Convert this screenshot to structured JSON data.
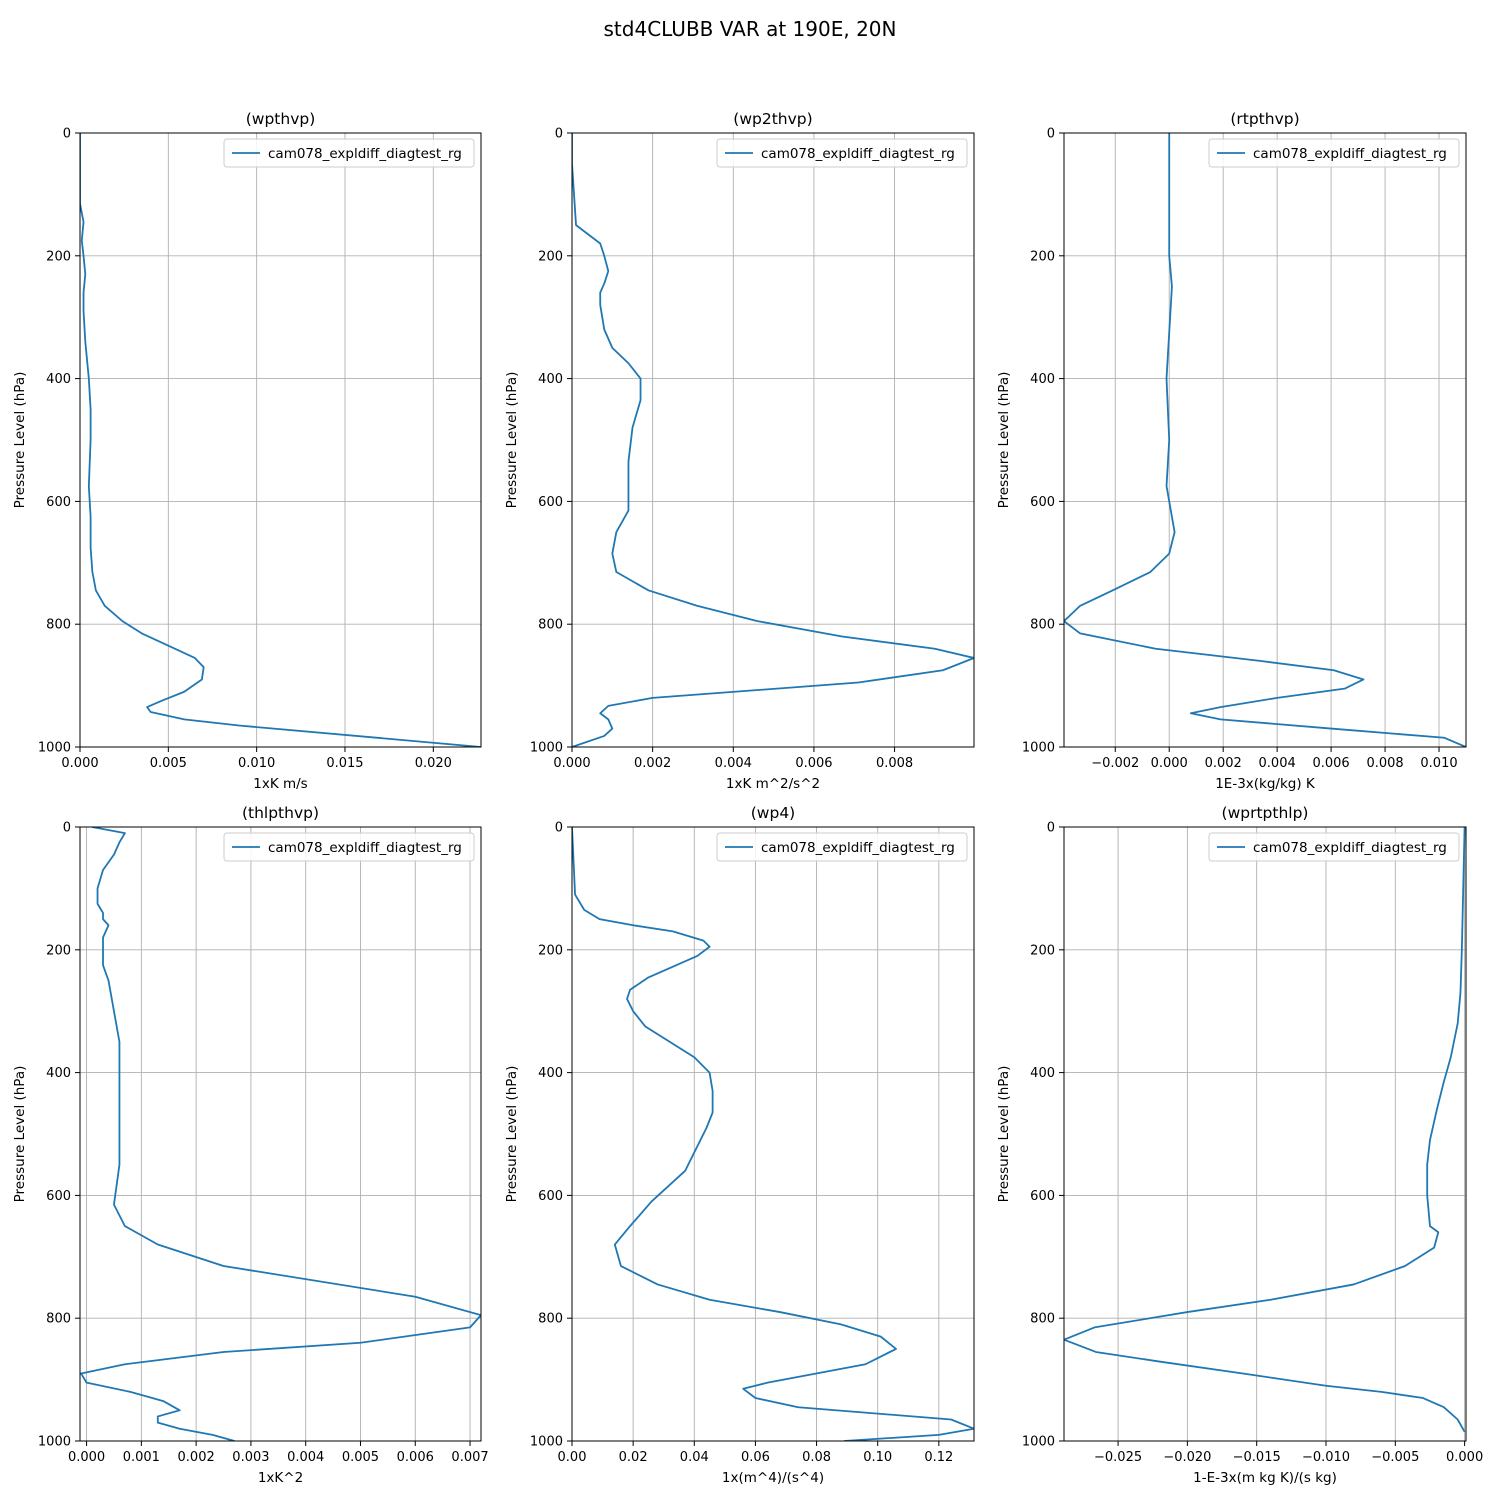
{
  "figure": {
    "title": "std4CLUBB VAR at 190E, 20N"
  },
  "chart_data": [
    {
      "type": "line",
      "title": "(wpthvp)",
      "xlabel": "1xK m/s",
      "ylabel": "Pressure Level (hPa)",
      "xlim": [
        0,
        0.0227
      ],
      "ylim": [
        1000,
        0
      ],
      "xticks": [
        0.0,
        0.005,
        0.01,
        0.015,
        0.02
      ],
      "xtick_labels": [
        "0.000",
        "0.005",
        "0.010",
        "0.015",
        "0.020"
      ],
      "yticks": [
        0,
        200,
        400,
        600,
        800,
        1000
      ],
      "ytick_labels": [
        "0",
        "200",
        "400",
        "600",
        "800",
        "1000"
      ],
      "grid": true,
      "legend_position": "top-right",
      "series": [
        {
          "name": "cam078_expldiff_diagtest_rg",
          "x": [
            0,
            0,
            0.0001,
            0.0002,
            0.0001,
            0.0002,
            0.0003,
            0.0002,
            0.0002,
            0.0003,
            0.0005,
            0.0006,
            0.0006,
            0.0005,
            0.0006,
            0.0006,
            0.0007,
            0.0009,
            0.0014,
            0.0024,
            0.0035,
            0.0065,
            0.007,
            0.0069,
            0.0059,
            0.0046,
            0.0038,
            0.004,
            0.0059,
            0.009,
            0.0227
          ],
          "y": [
            0,
            115,
            130,
            145,
            175,
            200,
            230,
            260,
            290,
            340,
            400,
            450,
            500,
            575,
            625,
            675,
            715,
            745,
            770,
            795,
            815,
            855,
            870,
            890,
            910,
            925,
            935,
            943,
            955,
            965,
            1000
          ]
        }
      ]
    },
    {
      "type": "line",
      "title": "(wp2thvp)",
      "xlabel": "1xK m^2/s^2",
      "ylabel": "Pressure Level (hPa)",
      "xlim": [
        0,
        0.00997
      ],
      "ylim": [
        1000,
        0
      ],
      "xticks": [
        0.0,
        0.002,
        0.004,
        0.006,
        0.008
      ],
      "xtick_labels": [
        "0.000",
        "0.002",
        "0.004",
        "0.006",
        "0.008"
      ],
      "yticks": [
        0,
        200,
        400,
        600,
        800,
        1000
      ],
      "ytick_labels": [
        "0",
        "200",
        "400",
        "600",
        "800",
        "1000"
      ],
      "grid": true,
      "legend_position": "top-right",
      "series": [
        {
          "name": "cam078_expldiff_diagtest_rg",
          "x": [
            0,
            0,
            0.0001,
            0.0007,
            0.0008,
            0.0009,
            0.0008,
            0.0007,
            0.0007,
            0.0008,
            0.001,
            0.0014,
            0.0017,
            0.0017,
            0.0015,
            0.0014,
            0.0014,
            0.0014,
            0.0011,
            0.001,
            0.0011,
            0.0019,
            0.0031,
            0.0046,
            0.0067,
            0.009,
            0.00997,
            0.0092,
            0.0071,
            0.002,
            0.0009,
            0.0007,
            0.0009,
            0.001,
            0.0008,
            0
          ],
          "y": [
            0,
            50,
            150,
            180,
            200,
            225,
            245,
            260,
            280,
            320,
            350,
            375,
            400,
            435,
            480,
            535,
            575,
            615,
            650,
            685,
            715,
            745,
            770,
            795,
            820,
            840,
            855,
            875,
            895,
            920,
            933,
            945,
            955,
            970,
            982,
            1000
          ]
        }
      ]
    },
    {
      "type": "line",
      "title": "(rtpthvp)",
      "xlabel": "1E-3x(kg/kg) K",
      "ylabel": "Pressure Level (hPa)",
      "xlim": [
        -0.0039,
        0.011
      ],
      "ylim": [
        1000,
        0
      ],
      "xticks": [
        -0.002,
        0.0,
        0.002,
        0.004,
        0.006,
        0.008,
        0.01
      ],
      "xtick_labels": [
        "−0.002",
        "0.000",
        "0.002",
        "0.004",
        "0.006",
        "0.008",
        "0.010"
      ],
      "yticks": [
        0,
        200,
        400,
        600,
        800,
        1000
      ],
      "ytick_labels": [
        "0",
        "200",
        "400",
        "600",
        "800",
        "1000"
      ],
      "grid": true,
      "legend_position": "top-right",
      "series": [
        {
          "name": "cam078_expldiff_diagtest_rg",
          "x": [
            0.0,
            0.0,
            0.0001,
            -0.0001,
            0.0,
            -0.0001,
            0.0002,
            0.0,
            -0.0007,
            -0.0021,
            -0.0033,
            -0.0039,
            -0.0033,
            -0.0005,
            0.0034,
            0.0061,
            0.0072,
            0.0065,
            0.004,
            0.0019,
            0.0008,
            0.0019,
            0.006,
            0.0102,
            0.011
          ],
          "y": [
            0,
            200,
            250,
            400,
            500,
            575,
            650,
            685,
            715,
            745,
            770,
            795,
            815,
            840,
            860,
            875,
            890,
            905,
            920,
            935,
            945,
            955,
            970,
            985,
            1000
          ]
        }
      ]
    },
    {
      "type": "line",
      "title": "(thlpthvp)",
      "xlabel": "1xK^2",
      "ylabel": "Pressure Level (hPa)",
      "xlim": [
        -0.00012,
        0.0072
      ],
      "ylim": [
        1000,
        0
      ],
      "xticks": [
        0.0,
        0.001,
        0.002,
        0.003,
        0.004,
        0.005,
        0.006,
        0.007
      ],
      "xtick_labels": [
        "0.000",
        "0.001",
        "0.002",
        "0.003",
        "0.004",
        "0.005",
        "0.006",
        "0.007"
      ],
      "yticks": [
        0,
        200,
        400,
        600,
        800,
        1000
      ],
      "ytick_labels": [
        "0",
        "200",
        "400",
        "600",
        "800",
        "1000"
      ],
      "grid": true,
      "legend_position": "top-right",
      "series": [
        {
          "name": "cam078_expldiff_diagtest_rg",
          "x": [
            0.0001,
            0.0007,
            0.0006,
            0.0005,
            0.0003,
            0.0002,
            0.0002,
            0.0003,
            0.0003,
            0.0004,
            0.0003,
            0.0003,
            0.0003,
            0.0004,
            0.0005,
            0.0006,
            0.0006,
            0.0006,
            0.0006,
            0.0005,
            0.0007,
            0.0013,
            0.0025,
            0.006,
            0.0072,
            0.007,
            0.005,
            0.0025,
            0.0007,
            -0.0001,
            0.0,
            0.0008,
            0.0014,
            0.0017,
            0.0013,
            0.0013,
            0.0017,
            0.0023,
            0.0027
          ],
          "y": [
            0,
            10,
            25,
            45,
            70,
            100,
            125,
            140,
            150,
            160,
            180,
            200,
            225,
            250,
            300,
            350,
            400,
            500,
            550,
            615,
            650,
            680,
            715,
            765,
            795,
            815,
            840,
            855,
            875,
            890,
            905,
            920,
            935,
            950,
            960,
            970,
            980,
            990,
            1000
          ]
        }
      ]
    },
    {
      "type": "line",
      "title": "(wp4)",
      "xlabel": "1x(m^4)/(s^4)",
      "ylabel": "Pressure Level (hPa)",
      "xlim": [
        0,
        0.1315
      ],
      "ylim": [
        1000,
        0
      ],
      "xticks": [
        0.0,
        0.02,
        0.04,
        0.06,
        0.08,
        0.1,
        0.12
      ],
      "xtick_labels": [
        "0.00",
        "0.02",
        "0.04",
        "0.06",
        "0.08",
        "0.10",
        "0.12"
      ],
      "yticks": [
        0,
        200,
        400,
        600,
        800,
        1000
      ],
      "ytick_labels": [
        "0",
        "200",
        "400",
        "600",
        "800",
        "1000"
      ],
      "grid": true,
      "legend_position": "top-right",
      "series": [
        {
          "name": "cam078_expldiff_diagtest_rg",
          "x": [
            0,
            0.001,
            0.004,
            0.009,
            0.02,
            0.033,
            0.043,
            0.045,
            0.041,
            0.025,
            0.019,
            0.018,
            0.02,
            0.024,
            0.04,
            0.045,
            0.046,
            0.046,
            0.044,
            0.037,
            0.026,
            0.019,
            0.014,
            0.016,
            0.028,
            0.045,
            0.068,
            0.088,
            0.101,
            0.106,
            0.096,
            0.064,
            0.056,
            0.06,
            0.074,
            0.124,
            0.1315,
            0.12,
            0.089
          ],
          "y": [
            0,
            110,
            135,
            150,
            160,
            170,
            185,
            195,
            210,
            245,
            265,
            280,
            300,
            325,
            375,
            400,
            430,
            465,
            490,
            560,
            610,
            650,
            680,
            715,
            745,
            770,
            790,
            810,
            830,
            850,
            875,
            905,
            915,
            930,
            945,
            965,
            980,
            990,
            1000
          ]
        }
      ]
    },
    {
      "type": "line",
      "title": "(wprtpthlp)",
      "xlabel": "1-E-3x(m kg K)/(s kg)",
      "ylabel": "Pressure Level (hPa)",
      "xlim": [
        -0.0289,
        0.0001
      ],
      "ylim": [
        1000,
        0
      ],
      "xticks": [
        -0.025,
        -0.02,
        -0.015,
        -0.01,
        -0.005,
        0.0
      ],
      "xtick_labels": [
        "−0.025",
        "−0.020",
        "−0.015",
        "−0.010",
        "−0.005",
        "0.000"
      ],
      "yticks": [
        0,
        200,
        400,
        600,
        800,
        1000
      ],
      "ytick_labels": [
        "0",
        "200",
        "400",
        "600",
        "800",
        "1000"
      ],
      "grid": true,
      "legend_position": "top-right",
      "series": [
        {
          "name": "cam078_expldiff_diagtest_rg",
          "x": [
            0,
            -0.0001,
            -0.0002,
            -0.0003,
            -0.0005,
            -0.001,
            -0.0015,
            -0.002,
            -0.0025,
            -0.0027,
            -0.0027,
            -0.0025,
            -0.0019,
            -0.0022,
            -0.0043,
            -0.008,
            -0.014,
            -0.02,
            -0.0267,
            -0.0289,
            -0.0266,
            -0.0222,
            -0.016,
            -0.01,
            -0.006,
            -0.003,
            -0.0015,
            -0.0005,
            0
          ],
          "y": [
            0,
            100,
            200,
            270,
            320,
            375,
            415,
            460,
            510,
            550,
            600,
            650,
            660,
            685,
            715,
            745,
            770,
            790,
            815,
            835,
            855,
            870,
            890,
            910,
            920,
            930,
            945,
            965,
            985
          ]
        }
      ]
    }
  ]
}
